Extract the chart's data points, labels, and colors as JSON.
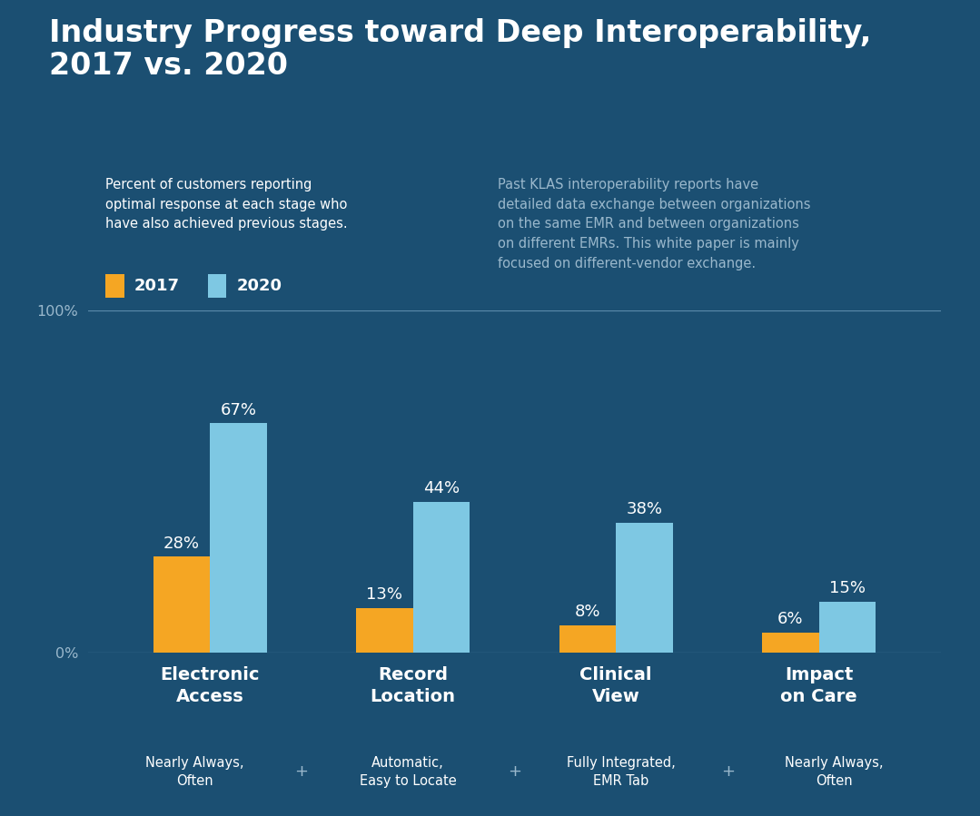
{
  "title": "Industry Progress toward Deep Interoperability,\n2017 vs. 2020",
  "background_color": "#1b4f72",
  "categories": [
    "Electronic\nAccess",
    "Record\nLocation",
    "Clinical\nView",
    "Impact\non Care"
  ],
  "values_2017": [
    28,
    13,
    8,
    6
  ],
  "values_2020": [
    67,
    44,
    38,
    15
  ],
  "color_2017": "#f5a623",
  "color_2020": "#7ec8e3",
  "subtitle_left": "Percent of customers reporting\noptimal response at each stage who\nhave also achieved previous stages.",
  "subtitle_right": "Past KLAS interoperability reports have\ndetailed data exchange between organizations\non the same EMR and between organizations\non different EMRs. This white paper is mainly\nfocused on different-vendor exchange.",
  "legend_2017": "2017",
  "legend_2020": "2020",
  "footer_items": [
    "Nearly Always,\nOften",
    "Automatic,\nEasy to Locate",
    "Fully Integrated,\nEMR Tab",
    "Nearly Always,\nOften"
  ],
  "footer_bg": "#1e5a8a",
  "grid_color": "#5a8aaa",
  "text_color_white": "#ffffff",
  "text_color_light": "#9ab8cc",
  "title_fontsize": 24,
  "subtitle_fontsize": 10.5,
  "label_fontsize": 13,
  "category_fontsize": 14,
  "footer_fontsize": 10.5,
  "legend_fontsize": 13
}
